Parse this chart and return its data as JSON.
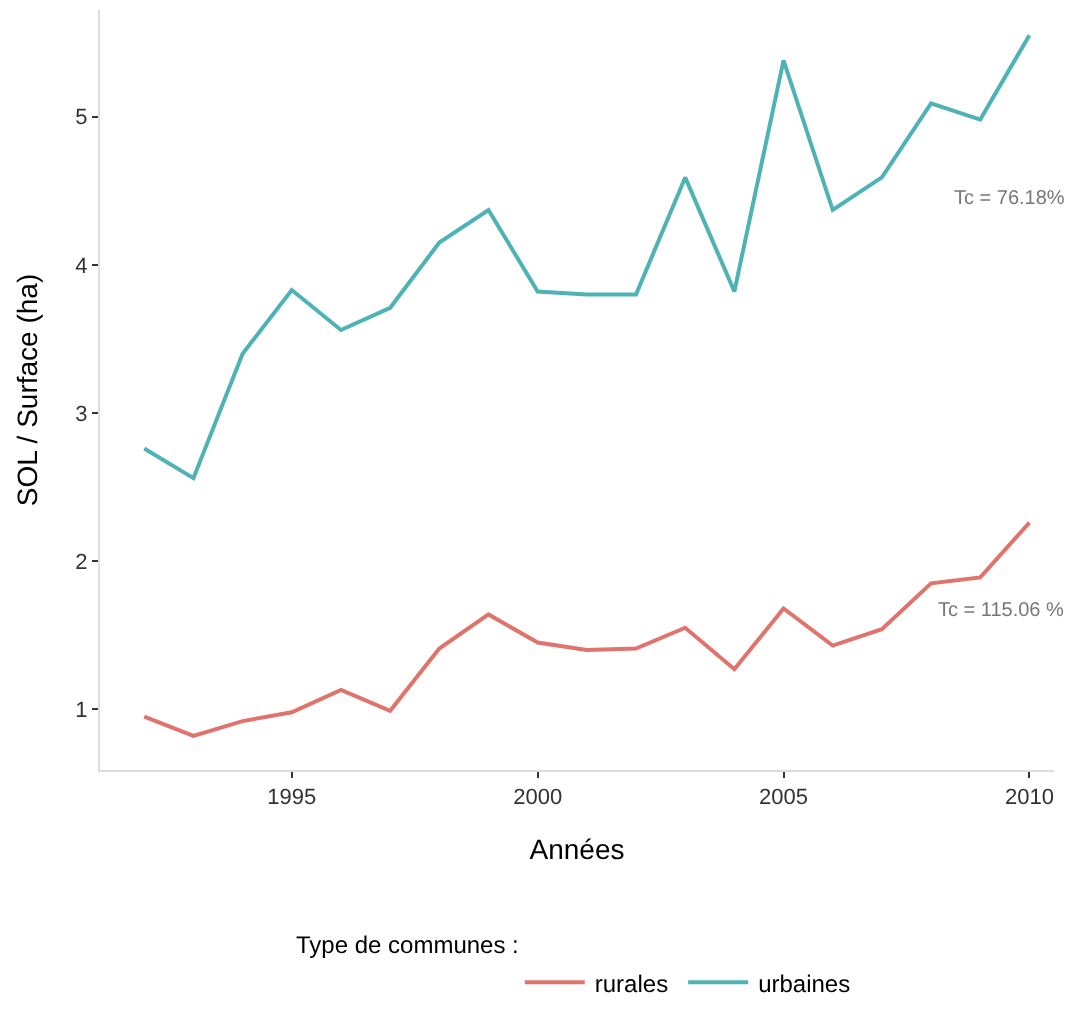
{
  "chart_data": {
    "type": "line",
    "xlabel": "Années",
    "ylabel": "SOL / Surface (ha)",
    "legend_title": "Type de communes :",
    "x": [
      1992,
      1993,
      1994,
      1995,
      1996,
      1997,
      1998,
      1999,
      2000,
      2001,
      2002,
      2003,
      2004,
      2005,
      2006,
      2007,
      2008,
      2009,
      2010
    ],
    "series": [
      {
        "name": "rurales",
        "color": "#e0736b",
        "values": [
          0.95,
          0.82,
          0.92,
          0.98,
          1.13,
          0.99,
          1.41,
          1.64,
          1.45,
          1.4,
          1.41,
          1.55,
          1.27,
          1.68,
          1.43,
          1.54,
          1.85,
          1.89,
          2.26
        ]
      },
      {
        "name": "urbaines",
        "color": "#4fb3b6",
        "values": [
          2.76,
          2.56,
          3.4,
          3.83,
          3.56,
          3.71,
          4.15,
          4.37,
          3.82,
          3.8,
          3.8,
          4.59,
          3.82,
          5.38,
          4.37,
          4.59,
          5.09,
          4.98,
          5.55
        ]
      }
    ],
    "annotations": [
      "Tc = 76.18%",
      "Tc = 115.06 %"
    ],
    "xlim": [
      1991.1,
      2010.5
    ],
    "xticks": [
      1995,
      2000,
      2005,
      2010
    ],
    "ylim": [
      0.59,
      5.72
    ],
    "yticks": [
      1,
      2,
      3,
      4,
      5
    ],
    "legend": "bottom",
    "marker": "none",
    "line_style": "solid"
  }
}
